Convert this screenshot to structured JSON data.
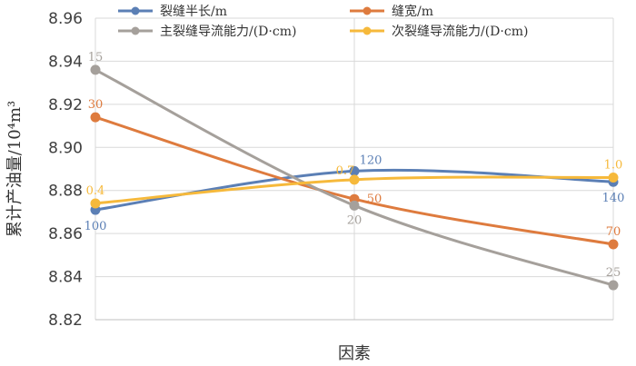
{
  "chart_data": {
    "type": "line",
    "xlabel": "因素",
    "ylabel": "累计产油量/10⁴m³",
    "ylim": [
      8.82,
      8.96
    ],
    "y_ticks": [
      "8.82",
      "8.84",
      "8.86",
      "8.88",
      "8.90",
      "8.92",
      "8.94",
      "8.96"
    ],
    "y_tick_values": [
      8.82,
      8.84,
      8.86,
      8.88,
      8.9,
      8.92,
      8.94,
      8.96
    ],
    "x_levels": 3,
    "grid": true,
    "smooth": true,
    "legend_position": "top",
    "series": [
      {
        "name": "裂缝半长/m",
        "color": "#5b7fb5",
        "values": [
          8.871,
          8.889,
          8.884
        ],
        "labels": [
          "100",
          "120",
          "140"
        ]
      },
      {
        "name": "缝宽/m",
        "color": "#de7b3e",
        "values": [
          8.914,
          8.876,
          8.855
        ],
        "labels": [
          "30",
          "50",
          "70"
        ]
      },
      {
        "name": "主裂缝导流能力/(D·cm)",
        "color": "#a5a09b",
        "values": [
          8.936,
          8.873,
          8.836
        ],
        "labels": [
          "15",
          "20",
          "25"
        ]
      },
      {
        "name": "次裂缝导流能力/(D·cm)",
        "color": "#f6b93b",
        "values": [
          8.874,
          8.885,
          8.886
        ],
        "labels": [
          "0.4",
          "0.7",
          "1.0"
        ]
      }
    ]
  }
}
